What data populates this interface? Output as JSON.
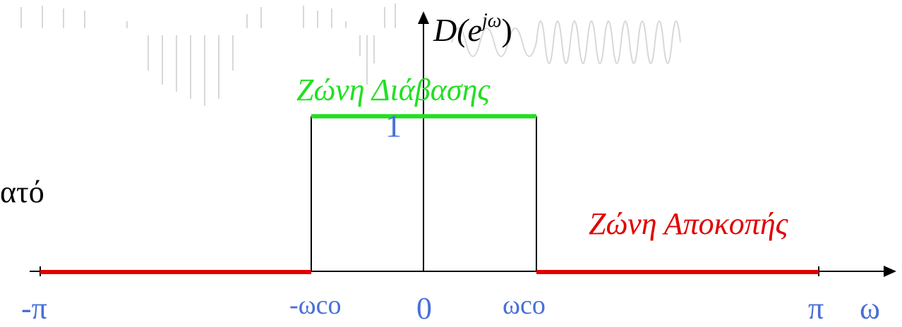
{
  "axis_label": {
    "base": "D(e",
    "sup": "jω",
    "close": ")"
  },
  "passband_label": "Ζώνη Διάβασης",
  "stopband_label": "Ζώνη Αποκοπής",
  "gain_label": "1",
  "side_text": "ατό",
  "x_labels": [
    "-π",
    "-ωco",
    "0",
    "ωco",
    "π",
    "ω"
  ]
}
